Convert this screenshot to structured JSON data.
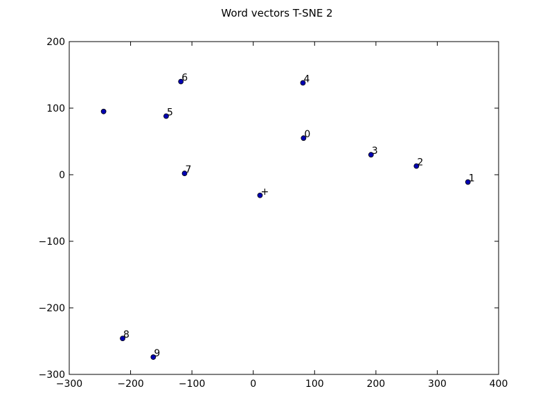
{
  "chart_data": {
    "type": "scatter",
    "title": "Word vectors T-SNE 2",
    "xlabel": "",
    "ylabel": "",
    "xlim": [
      -300,
      400
    ],
    "ylim": [
      -300,
      200
    ],
    "xticks": [
      -300,
      -200,
      -100,
      0,
      100,
      200,
      300,
      400
    ],
    "yticks": [
      200,
      100,
      0,
      -100,
      -200,
      -300
    ],
    "xtick_labels": [
      "−300",
      "−200",
      "−100",
      "0",
      "100",
      "200",
      "300",
      "400"
    ],
    "ytick_labels": [
      "200",
      "100",
      "0",
      "−100",
      "−200",
      "−300"
    ],
    "grid": false,
    "marker_color": "#0000b3",
    "points": [
      {
        "label": "0",
        "x": 82,
        "y": 55
      },
      {
        "label": "1",
        "x": 350,
        "y": -11
      },
      {
        "label": "2",
        "x": 266,
        "y": 13
      },
      {
        "label": "3",
        "x": 192,
        "y": 30
      },
      {
        "label": "4",
        "x": 81,
        "y": 138
      },
      {
        "label": "5",
        "x": -142,
        "y": 88
      },
      {
        "label": "6",
        "x": -118,
        "y": 140
      },
      {
        "label": "7",
        "x": -112,
        "y": 2
      },
      {
        "label": "8",
        "x": -213,
        "y": -246
      },
      {
        "label": "9",
        "x": -163,
        "y": -274
      },
      {
        "label": "+",
        "x": 11,
        "y": -31
      },
      {
        "label": "",
        "x": -244,
        "y": 95
      }
    ]
  }
}
